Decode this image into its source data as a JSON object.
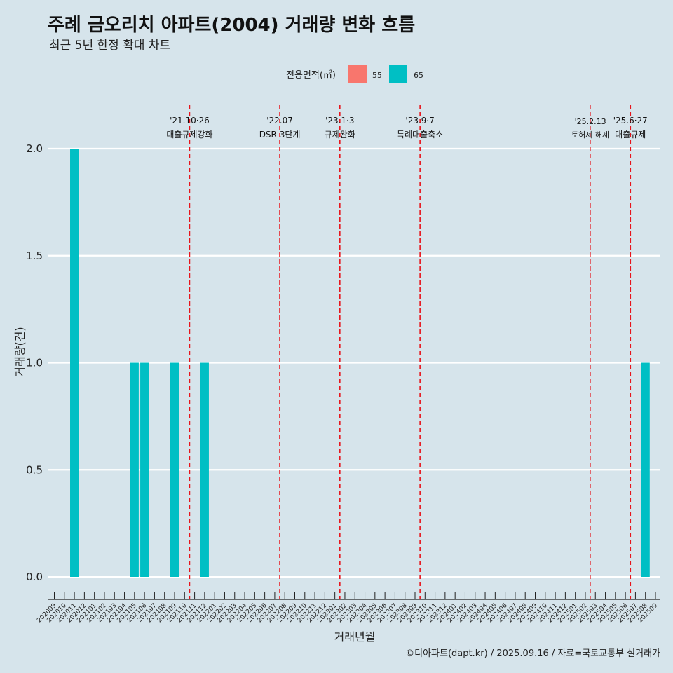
{
  "chart_data": {
    "type": "bar",
    "title": "주례 금오리치 아파트(2004) 거래량 변화 흐름",
    "subtitle": "최근 5년 한정 확대 차트",
    "xlabel": "거래년월",
    "ylabel": "거래량(건)",
    "ylim": [
      0,
      2
    ],
    "yticks": [
      "0.0",
      "0.5",
      "1.0",
      "1.5",
      "2.0"
    ],
    "caption": "©디아파트(dapt.kr) / 2025.09.16 / 자료=국토교통부 실거래가",
    "legend": {
      "title": "전용면적(㎡)",
      "position": "top",
      "entries": [
        {
          "label": "55",
          "color": "#f8766d"
        },
        {
          "label": "65",
          "color": "#00bfc4"
        }
      ]
    },
    "categories": [
      "202009",
      "202010",
      "202011",
      "202012",
      "202101",
      "202102",
      "202103",
      "202104",
      "202105",
      "202106",
      "202107",
      "202108",
      "202109",
      "202110",
      "202111",
      "202112",
      "202201",
      "202202",
      "202203",
      "202204",
      "202205",
      "202206",
      "202207",
      "202208",
      "202209",
      "202210",
      "202211",
      "202212",
      "202301",
      "202302",
      "202303",
      "202304",
      "202305",
      "202306",
      "202307",
      "202308",
      "202309",
      "202310",
      "202311",
      "202312",
      "202401",
      "202402",
      "202403",
      "202404",
      "202405",
      "202406",
      "202407",
      "202408",
      "202409",
      "202410",
      "202411",
      "202412",
      "202501",
      "202502",
      "202503",
      "202504",
      "202505",
      "202506",
      "202507",
      "202508",
      "202509"
    ],
    "series": [
      {
        "name": "65",
        "color": "#00bfc4",
        "points": [
          {
            "x": "202011",
            "y": 2
          },
          {
            "x": "202105",
            "y": 1
          },
          {
            "x": "202106",
            "y": 1
          },
          {
            "x": "202109",
            "y": 1
          },
          {
            "x": "202112",
            "y": 1
          },
          {
            "x": "202508",
            "y": 1
          }
        ]
      }
    ],
    "events": [
      {
        "date": "'21.10·26",
        "label": "대출규제강화",
        "x": "202110",
        "style": "dashed"
      },
      {
        "date": "'22.07",
        "label": "DSR 3단계",
        "x": "202207",
        "style": "dashed"
      },
      {
        "date": "'23.1·3",
        "label": "규제완화",
        "x": "202301",
        "style": "dashed"
      },
      {
        "date": "'23.9·7",
        "label": "특례대출축소",
        "x": "202309",
        "style": "dashed"
      },
      {
        "date": "'25.2.13",
        "label": "토허제 해제",
        "x": "202502",
        "style": "thin"
      },
      {
        "date": "'25.6·27",
        "label": "대출규제",
        "x": "202506",
        "style": "dashed"
      }
    ]
  }
}
